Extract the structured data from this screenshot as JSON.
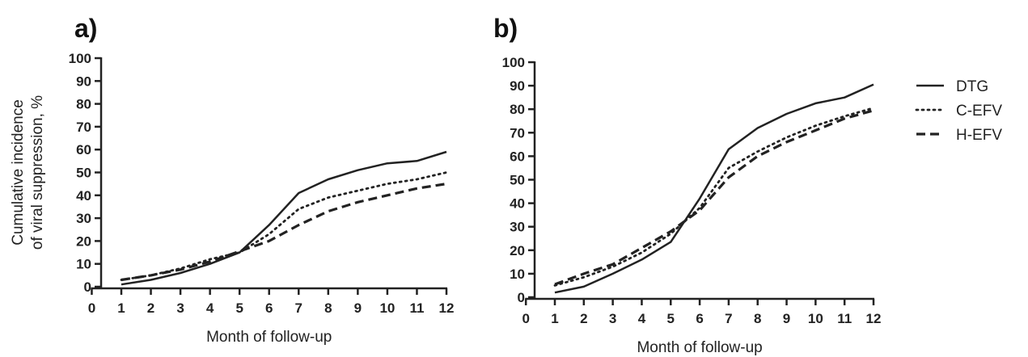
{
  "chart_data": [
    {
      "type": "line",
      "panel_label": "a)",
      "xlabel": "Month of follow-up",
      "ylabel_lines": [
        "Cumulative incidence",
        "of viral suppression, %"
      ],
      "xlim": [
        0,
        12
      ],
      "ylim": [
        0,
        100
      ],
      "x_ticks": [
        0,
        1,
        2,
        3,
        4,
        5,
        6,
        7,
        8,
        9,
        10,
        11,
        12
      ],
      "y_ticks": [
        0,
        10,
        20,
        30,
        40,
        50,
        60,
        70,
        80,
        90,
        100
      ],
      "grid": false,
      "x": [
        1,
        2,
        3,
        4,
        5,
        6,
        7,
        8,
        9,
        10,
        11,
        12
      ],
      "series": [
        {
          "name": "DTG",
          "values": [
            1,
            3,
            6,
            10,
            15,
            27,
            41,
            47,
            51,
            54,
            55,
            59
          ]
        },
        {
          "name": "C-EFV",
          "values": [
            3,
            5,
            8,
            12,
            15,
            23,
            34,
            39,
            42,
            45,
            47,
            50
          ]
        },
        {
          "name": "H-EFV",
          "values": [
            3,
            5,
            7.5,
            11,
            15.5,
            20,
            27,
            33,
            37,
            40,
            43,
            45
          ]
        }
      ]
    },
    {
      "type": "line",
      "panel_label": "b)",
      "xlabel": "Month of follow-up",
      "ylabel_lines": [],
      "xlim": [
        0,
        12
      ],
      "ylim": [
        0,
        100
      ],
      "x_ticks": [
        0,
        1,
        2,
        3,
        4,
        5,
        6,
        7,
        8,
        9,
        10,
        11,
        12
      ],
      "y_ticks": [
        0,
        10,
        20,
        30,
        40,
        50,
        60,
        70,
        80,
        90,
        100
      ],
      "grid": false,
      "x": [
        1,
        2,
        3,
        4,
        5,
        6,
        7,
        8,
        9,
        10,
        11,
        12
      ],
      "series": [
        {
          "name": "DTG",
          "values": [
            2,
            4.5,
            10,
            16,
            23.5,
            42,
            63,
            72,
            78,
            82.5,
            85,
            90.5
          ]
        },
        {
          "name": "C-EFV",
          "values": [
            5,
            8.5,
            13,
            19,
            27,
            38,
            55,
            62,
            68,
            73,
            77,
            80.5
          ]
        },
        {
          "name": "H-EFV",
          "values": [
            5.5,
            10,
            14,
            21,
            28,
            37,
            51,
            60,
            66,
            71,
            76,
            79.5
          ]
        }
      ]
    }
  ],
  "legend": {
    "placement": "right",
    "entries": [
      {
        "name": "DTG",
        "dash": "solid"
      },
      {
        "name": "C-EFV",
        "dash": "dotted"
      },
      {
        "name": "H-EFV",
        "dash": "dashed"
      }
    ]
  },
  "colors": {
    "line": "#222222"
  }
}
